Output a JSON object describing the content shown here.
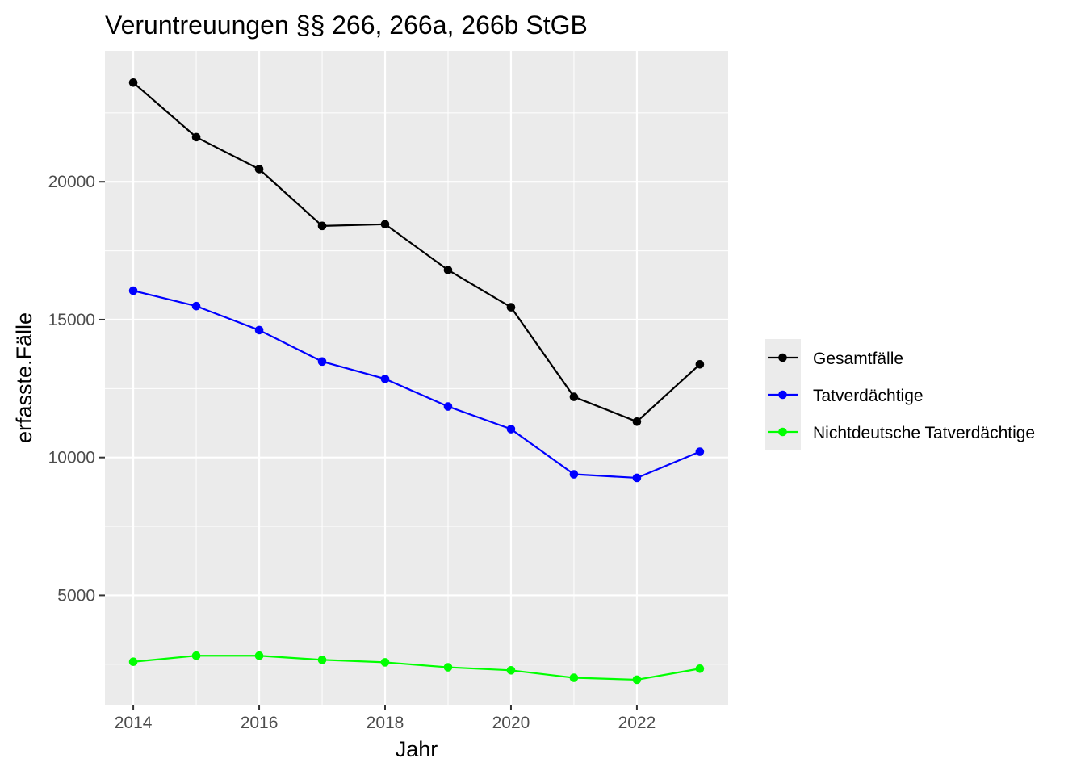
{
  "chart_data": {
    "type": "line",
    "title": "Veruntreuungen §§ 266, 266a, 266b StGB",
    "xlabel": "Jahr",
    "ylabel": "erfasste.Fälle",
    "x": [
      2014,
      2015,
      2016,
      2017,
      2018,
      2019,
      2020,
      2021,
      2022,
      2023
    ],
    "x_ticks": [
      2014,
      2016,
      2018,
      2020,
      2022
    ],
    "x_tick_labels": [
      "2014",
      "2016",
      "2018",
      "2020",
      "2022"
    ],
    "xlim": [
      2013.55,
      2023.45
    ],
    "y_ticks": [
      5000,
      10000,
      15000,
      20000
    ],
    "y_tick_labels": [
      "5000",
      "10000",
      "15000",
      "20000"
    ],
    "ylim": [
      1030,
      24750
    ],
    "grid": true,
    "legend_position": "right",
    "series": [
      {
        "name": "Gesamtfälle",
        "color": "#000000",
        "values": [
          23600,
          21620,
          20460,
          18400,
          18460,
          16800,
          15450,
          12200,
          11300,
          13380
        ]
      },
      {
        "name": "Tatverdächtige",
        "color": "#0000ff",
        "values": [
          16050,
          15490,
          14620,
          13480,
          12850,
          11850,
          11030,
          9390,
          9260,
          10210
        ]
      },
      {
        "name": "Nichtdeutsche Tatverdächtige",
        "color": "#00ff00",
        "values": [
          2590,
          2810,
          2810,
          2660,
          2570,
          2390,
          2280,
          2010,
          1940,
          2340
        ]
      }
    ]
  }
}
